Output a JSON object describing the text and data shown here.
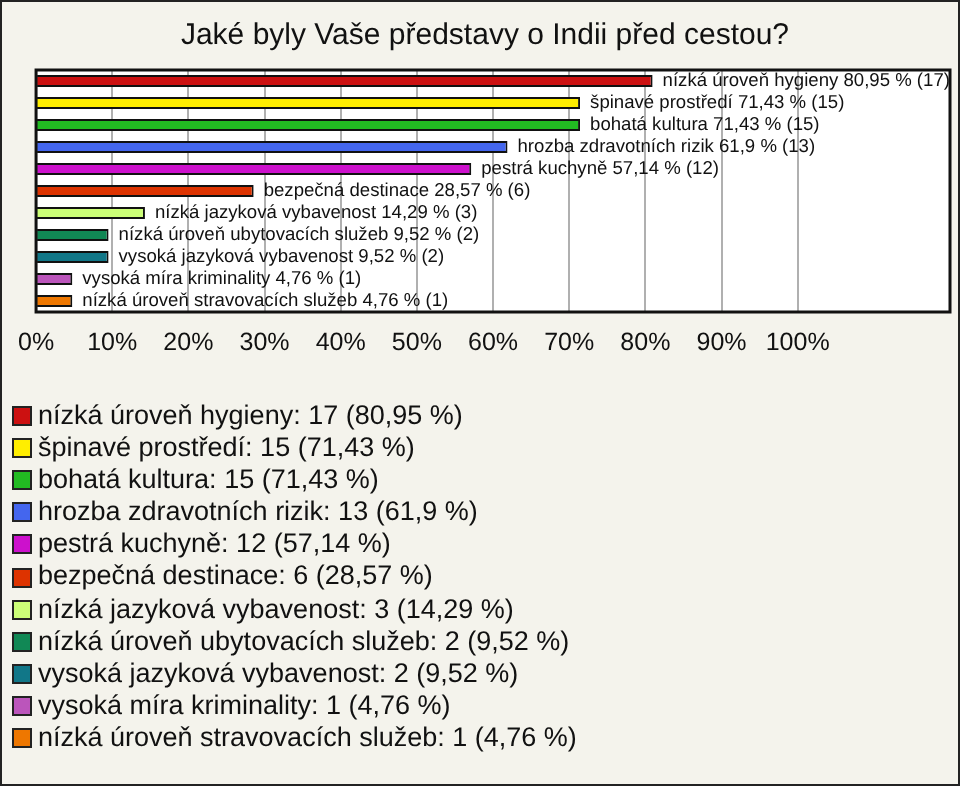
{
  "chart_data": {
    "type": "bar",
    "orientation": "horizontal",
    "title": "Jaké byly Vaše představy o Indii před cestou?",
    "categories": [
      "nízká úroveň hygieny",
      "špinavé prostředí",
      "bohatá kultura",
      "hrozba zdravotních rizik",
      "pestrá kuchyně",
      "bezpečná destinace",
      "nízká jazyková vybavenost",
      "nízká úroveň ubytovacích služeb",
      "vysoká jazyková vybavenost",
      "vysoká míra kriminality",
      "nízká úroveň stravovacích služeb"
    ],
    "values": [
      80.95,
      71.43,
      71.43,
      61.9,
      57.14,
      28.57,
      14.29,
      9.52,
      9.52,
      4.76,
      4.76
    ],
    "value_labels": [
      "80,95 % (17)",
      "71,43 % (15)",
      "71,43 % (15)",
      "61,9 % (13)",
      "57,14 % (12)",
      "28,57 % (6)",
      "14,29 % (3)",
      "9,52 % (2)",
      "9,52 % (2)",
      "4,76 % (1)",
      "4,76 % (1)"
    ],
    "colors": [
      "#cc1111",
      "#ffee00",
      "#22bb22",
      "#4466ee",
      "#cc11cc",
      "#dd3300",
      "#ccff77",
      "#118855",
      "#117788",
      "#bb55bb",
      "#ee7700"
    ],
    "xlim": [
      0,
      120
    ],
    "xticks": [
      {
        "value": 0,
        "label": "0%"
      },
      {
        "value": 10,
        "label": "10%"
      },
      {
        "value": 20,
        "label": "20%"
      },
      {
        "value": 30,
        "label": "30%"
      },
      {
        "value": 40,
        "label": "40%"
      },
      {
        "value": 50,
        "label": "50%"
      },
      {
        "value": 60,
        "label": "60%"
      },
      {
        "value": 70,
        "label": "70%"
      },
      {
        "value": 80,
        "label": "80%"
      },
      {
        "value": 90,
        "label": "90%"
      },
      {
        "value": 100,
        "label": "100%"
      }
    ],
    "grid": "x",
    "tick_labels": "x",
    "annotations": [
      "nízká úroveň hygieny: 17 (80,95 %)",
      "špinavé prostředí: 15 (71,43 %)",
      "bohatá kultura: 15 (71,43 %)",
      "hrozba zdravotních rizik: 13 (61,9 %)",
      "pestrá kuchyně: 12 (57,14 %)",
      "bezpečná destinace: 6 (28,57 %)",
      "nízká jazyková vybavenost: 3 (14,29 %)",
      "nízká úroveň ubytovacích služeb: 2 (9,52 %)",
      "vysoká jazyková vybavenost: 2 (9,52 %)",
      "vysoká míra kriminality: 1 (4,76 %)",
      "nízká úroveň stravovacích služeb: 1 (4,76 %)"
    ]
  }
}
